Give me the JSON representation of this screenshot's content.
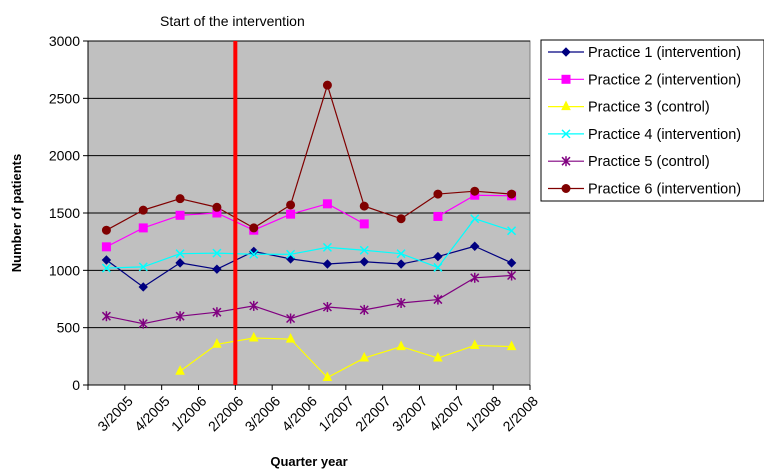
{
  "chart_data": {
    "type": "line",
    "title": "",
    "xlabel": "Quarter year",
    "ylabel": "Number of patients",
    "annotation": "Start of the intervention",
    "categories": [
      "3/2005",
      "4/2005",
      "1/2006",
      "2/2006",
      "3/2006",
      "4/2006",
      "1/2007",
      "2/2007",
      "3/2007",
      "4/2007",
      "1/2008",
      "2/2008"
    ],
    "ylim": [
      0,
      3000
    ],
    "yticks": [
      0,
      500,
      1000,
      1500,
      2000,
      2500,
      3000
    ],
    "grid": true,
    "legend_position": "right",
    "plot_background": "#c0c0c0",
    "intervention_color": "#ff0000",
    "intervention_after_index": 3,
    "series": [
      {
        "name": "Practice 1 (intervention)",
        "color": "#000080",
        "marker": "diamond",
        "values": [
          1090,
          855,
          1065,
          1010,
          1165,
          1100,
          1055,
          1075,
          1055,
          1120,
          1210,
          1065
        ]
      },
      {
        "name": "Practice 2 (intervention)",
        "color": "#ff00ff",
        "marker": "square",
        "values": [
          1205,
          1370,
          1480,
          1500,
          1350,
          1490,
          1580,
          1405,
          null,
          1470,
          1655,
          1650
        ]
      },
      {
        "name": "Practice 3 (control)",
        "color": "#ffff00",
        "marker": "triangle",
        "values": [
          null,
          null,
          120,
          355,
          410,
          400,
          65,
          235,
          335,
          235,
          345,
          335
        ]
      },
      {
        "name": "Practice 4 (intervention)",
        "color": "#00ffff",
        "marker": "x",
        "values": [
          1020,
          1030,
          1145,
          1150,
          1140,
          1140,
          1200,
          1175,
          1145,
          1025,
          1450,
          1345
        ]
      },
      {
        "name": "Practice 5 (control)",
        "color": "#800080",
        "marker": "star",
        "values": [
          600,
          535,
          600,
          635,
          690,
          580,
          680,
          655,
          715,
          745,
          935,
          955
        ]
      },
      {
        "name": "Practice 6 (intervention)",
        "color": "#800000",
        "marker": "circle",
        "values": [
          1350,
          1525,
          1625,
          1550,
          1370,
          1570,
          2615,
          1560,
          1450,
          1665,
          1690,
          1665
        ]
      }
    ]
  }
}
